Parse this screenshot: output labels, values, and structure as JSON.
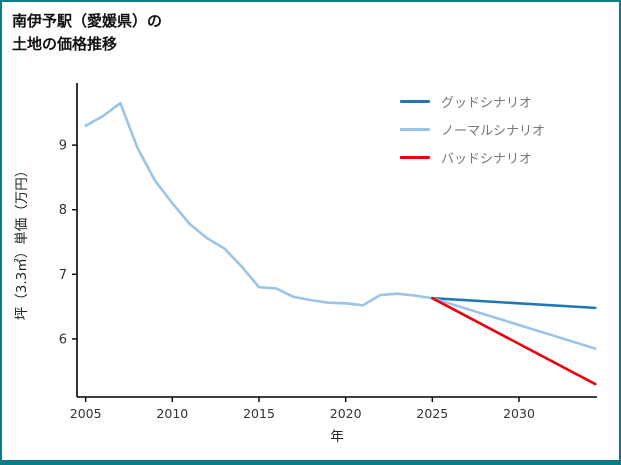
{
  "page": {
    "border_color": "#0e7c86"
  },
  "title": {
    "line1": "南伊予駅（愛媛県）の",
    "line2": "土地の価格推移"
  },
  "chart_data": {
    "type": "line",
    "title": "南伊予駅（愛媛県）の土地の価格推移",
    "xlabel": "年",
    "ylabel": "坪（3.3㎡）単価（万円）",
    "xlim": [
      2004.5,
      2034.5
    ],
    "ylim": [
      5.1,
      9.9
    ],
    "xticks": [
      2005,
      2010,
      2015,
      2020,
      2025,
      2030
    ],
    "yticks": [
      6,
      7,
      8,
      9
    ],
    "grid": false,
    "legend_position": "upper right",
    "legend": [
      {
        "label": "グッドシナリオ",
        "color": "#1f77b4"
      },
      {
        "label": "ノーマルシナリオ",
        "color": "#9ac4e8"
      },
      {
        "label": "バッドシナリオ",
        "color": "#e8000b"
      }
    ],
    "series": [
      {
        "id": "history",
        "color": "#9ac4e8",
        "years": [
          2005,
          2006,
          2007,
          2008,
          2009,
          2010,
          2011,
          2012,
          2013,
          2014,
          2015,
          2016,
          2017,
          2018,
          2019,
          2020,
          2021,
          2022,
          2023,
          2024,
          2025
        ],
        "values": [
          9.3,
          9.45,
          9.65,
          8.95,
          8.45,
          8.1,
          7.78,
          7.56,
          7.4,
          7.12,
          6.8,
          6.78,
          6.65,
          6.6,
          6.56,
          6.55,
          6.52,
          6.68,
          6.7,
          6.67,
          6.63
        ]
      },
      {
        "id": "good",
        "color": "#1f77b4",
        "years": [
          2025,
          2034.4
        ],
        "values": [
          6.63,
          6.48
        ]
      },
      {
        "id": "normal",
        "color": "#9ac4e8",
        "years": [
          2025,
          2034.4
        ],
        "values": [
          6.63,
          5.85
        ]
      },
      {
        "id": "bad",
        "color": "#e8000b",
        "years": [
          2025,
          2034.4
        ],
        "values": [
          6.63,
          5.3
        ]
      }
    ]
  }
}
